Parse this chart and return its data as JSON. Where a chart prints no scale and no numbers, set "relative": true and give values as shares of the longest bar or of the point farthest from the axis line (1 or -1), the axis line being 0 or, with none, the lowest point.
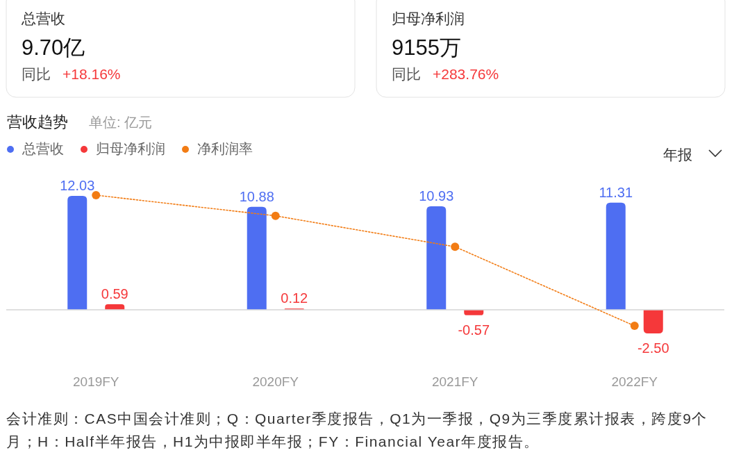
{
  "chart_data": [
    {
      "type": "other",
      "title": "总营收",
      "annotations": [
        "9.70亿",
        "同比",
        "+18.16%"
      ]
    },
    {
      "type": "other",
      "title": "归母净利润",
      "annotations": [
        "9155万",
        "同比",
        "+283.76%"
      ]
    },
    {
      "type": "bar",
      "title": "营收趋势",
      "subtitle": "单位: 亿元",
      "categories": [
        "2019FY",
        "2020FY",
        "2021FY",
        "2022FY"
      ],
      "series": [
        {
          "name": "总营收",
          "color": "#4e6ef2",
          "values": [
            12.03,
            10.88,
            10.93,
            11.31
          ],
          "value_labels": [
            "12.03",
            "10.88",
            "10.93",
            "11.31"
          ]
        },
        {
          "name": "归母净利润",
          "color": "#f5383a",
          "values": [
            0.59,
            0.12,
            -0.57,
            -2.5
          ],
          "value_labels": [
            "0.59",
            "0.12",
            "-0.57",
            "-2.50"
          ]
        }
      ],
      "legend": "top left",
      "annotations": [
        "年报",
        "会计准则：CAS中国会计准则；Q：Quarter季度报告，Q1为一季报，Q9为三季度累计报表，跨度9个月；H：Half半年报告，H1为中报即半年报；FY：Financial Year年度报告。"
      ]
    },
    {
      "type": "line",
      "relative": true,
      "categories": [
        null,
        null,
        null,
        null
      ],
      "series": [
        {
          "name": "净利润率",
          "color": "#f27c14",
          "values": [
            1,
            0.82,
            0.55,
            -0.14
          ]
        }
      ],
      "legend": "top left",
      "marker": "circle",
      "line_style": "dotted"
    }
  ]
}
